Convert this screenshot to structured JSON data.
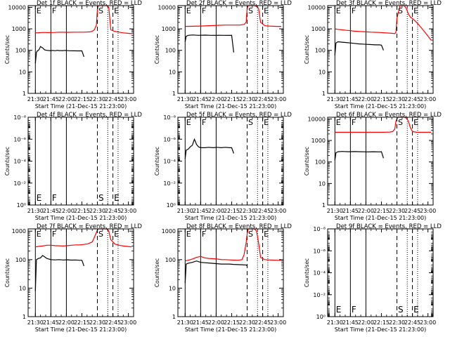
{
  "figure": {
    "xlabel": "Start Time (21-Dec-15 21:23:00)",
    "ylabel": "Counts/sec",
    "x_ticks": [
      "21:30",
      "21:45",
      "22:00",
      "22:15",
      "22:30",
      "22:45",
      "23:00"
    ],
    "x_tick_minutes": [
      7,
      22,
      37,
      52,
      67,
      82,
      97
    ],
    "x_range_minutes": [
      0,
      102
    ],
    "markers": {
      "E_left": 7,
      "F": 22,
      "solid_mid": 37,
      "S": 67,
      "E": 82,
      "dot1": 77,
      "dot2": 87
    },
    "colors": {
      "events": "#000000",
      "lld": "#ff0000"
    }
  },
  "chart_data": [
    {
      "type": "line",
      "title": "Det 1f BLACK = Events, RED = LLD",
      "ylim": [
        1,
        12000
      ],
      "y_ticks": [
        "1",
        "10",
        "100",
        "1000",
        "10000"
      ],
      "y_tick_values": [
        1,
        10,
        100,
        1000,
        10000
      ],
      "marker_labels": {
        "E": "E",
        "F": "F",
        "S": "S",
        "E2": "E"
      },
      "label_pos": "top",
      "series": [
        {
          "name": "Events",
          "color": "#000000",
          "x": [
            7,
            8,
            9,
            10,
            11,
            12,
            14,
            16,
            18,
            20,
            22,
            24,
            26,
            28,
            30,
            33,
            36,
            40,
            44,
            48,
            52,
            54
          ],
          "y": [
            25,
            80,
            95,
            100,
            120,
            150,
            130,
            105,
            100,
            98,
            97,
            99,
            96,
            100,
            98,
            97,
            99,
            96,
            95,
            94,
            95,
            50
          ]
        },
        {
          "name": "LLD",
          "color": "#ff0000",
          "x": [
            7,
            10,
            14,
            20,
            26,
            30,
            38,
            46,
            54,
            60,
            62,
            64,
            66,
            67,
            68,
            76,
            78,
            80,
            84,
            88,
            92,
            96,
            100
          ],
          "y": [
            650,
            660,
            680,
            670,
            680,
            700,
            690,
            700,
            700,
            720,
            780,
            900,
            1500,
            8000,
            12000,
            12000,
            10000,
            900,
            750,
            700,
            650,
            620,
            600
          ]
        }
      ]
    },
    {
      "type": "line",
      "title": "Det 2f BLACK = Events, RED = LLD",
      "ylim": [
        1,
        12000
      ],
      "y_ticks": [
        "1",
        "10",
        "100",
        "1000",
        "10000"
      ],
      "y_tick_values": [
        1,
        10,
        100,
        1000,
        10000
      ],
      "marker_labels": {
        "E": "E",
        "F": "F",
        "S": "S",
        "E2": "E"
      },
      "label_pos": "top",
      "series": [
        {
          "name": "Events",
          "color": "#000000",
          "x": [
            7,
            8,
            10,
            14,
            20,
            26,
            32,
            38,
            44,
            50,
            52,
            54
          ],
          "y": [
            250,
            450,
            500,
            520,
            500,
            510,
            500,
            505,
            500,
            495,
            500,
            80
          ]
        },
        {
          "name": "LLD",
          "color": "#ff0000",
          "x": [
            7,
            14,
            22,
            30,
            38,
            46,
            54,
            60,
            62,
            64,
            66,
            67,
            68,
            74,
            76,
            78,
            80,
            84,
            88,
            92,
            96,
            100
          ],
          "y": [
            1300,
            1320,
            1350,
            1400,
            1450,
            1500,
            1500,
            1500,
            1550,
            1600,
            2000,
            9000,
            12000,
            12000,
            11000,
            9000,
            2000,
            1400,
            1350,
            1320,
            1300,
            1300
          ]
        }
      ]
    },
    {
      "type": "line",
      "title": "Det 3f BLACK = Events, RED = LLD",
      "ylim": [
        1,
        12000
      ],
      "y_ticks": [
        "1",
        "10",
        "100",
        "1000",
        "10000"
      ],
      "y_tick_values": [
        1,
        10,
        100,
        1000,
        10000
      ],
      "marker_labels": {
        "E": "E",
        "F": "F",
        "S": "S",
        "E2": "E"
      },
      "label_pos": "top",
      "series": [
        {
          "name": "Events",
          "color": "#000000",
          "x": [
            7,
            8,
            10,
            14,
            18,
            22,
            26,
            30,
            34,
            38,
            42,
            46,
            50,
            52,
            54
          ],
          "y": [
            60,
            220,
            250,
            240,
            230,
            220,
            210,
            200,
            195,
            190,
            185,
            180,
            180,
            175,
            100
          ]
        },
        {
          "name": "LLD",
          "color": "#ff0000",
          "x": [
            7,
            10,
            14,
            18,
            22,
            26,
            30,
            34,
            38,
            42,
            46,
            50,
            54,
            58,
            62,
            65,
            66,
            67,
            70,
            74,
            76,
            78,
            80,
            82,
            86,
            90,
            94,
            98,
            100
          ],
          "y": [
            1000,
            950,
            900,
            850,
            820,
            780,
            760,
            740,
            720,
            700,
            690,
            680,
            660,
            640,
            620,
            600,
            700,
            3000,
            12000,
            12000,
            9000,
            5000,
            3500,
            3000,
            2000,
            1200,
            700,
            400,
            300
          ]
        }
      ]
    },
    {
      "type": "line",
      "title": "Det 4f BLACK = Events, RED = LLD",
      "ylim": [
        1,
        1e-08
      ],
      "y_ticks": [
        "10⁰",
        "10⁻²",
        "10⁻⁴",
        "10⁻⁶",
        "10⁻⁸"
      ],
      "y_tick_values": [
        1,
        0.01,
        0.0001,
        1e-06,
        1e-08
      ],
      "marker_labels": {
        "E": "E",
        "F": "F",
        "S": "S",
        "E2": "E"
      },
      "label_pos": "bottom",
      "series": []
    },
    {
      "type": "line",
      "title": "Det 5f BLACK = Events, RED = LLD",
      "ylim": [
        1,
        1e-08
      ],
      "y_ticks": [
        "10⁰",
        "10⁻²",
        "10⁻⁴",
        "10⁻⁶",
        "10⁻⁸"
      ],
      "y_tick_values": [
        1,
        0.01,
        0.0001,
        1e-06,
        1e-08
      ],
      "marker_labels": {
        "E": "E",
        "F": "F",
        "S": "S",
        "E2": "E"
      },
      "label_pos": "top",
      "series": [
        {
          "name": "Events",
          "color": "#000000",
          "x": [
            7,
            8,
            10,
            12,
            14,
            16,
            18,
            20,
            22,
            26,
            30,
            34,
            38,
            42,
            46,
            50,
            52,
            54
          ],
          "y": [
            6e-05,
            1e-05,
            8e-06,
            5e-06,
            3.5e-06,
            1e-06,
            3e-06,
            5e-06,
            6e-06,
            6e-06,
            5.5e-06,
            6e-06,
            5.5e-06,
            6e-06,
            5.5e-06,
            6e-06,
            6e-06,
            2e-05
          ]
        }
      ]
    },
    {
      "type": "line",
      "title": "Det 6f BLACK = Events, RED = LLD",
      "ylim": [
        1,
        12000
      ],
      "y_ticks": [
        "1",
        "10",
        "100",
        "1000",
        "10000"
      ],
      "y_tick_values": [
        1,
        10,
        100,
        1000,
        10000
      ],
      "marker_labels": {
        "E": "E",
        "F": "F",
        "S": "S",
        "E2": "E"
      },
      "label_pos": "top",
      "series": [
        {
          "name": "Events",
          "color": "#000000",
          "x": [
            7,
            8,
            10,
            14,
            20,
            26,
            32,
            38,
            44,
            50,
            52,
            54
          ],
          "y": [
            120,
            270,
            300,
            310,
            300,
            305,
            300,
            295,
            300,
            295,
            300,
            150
          ]
        },
        {
          "name": "LLD",
          "color": "#ff0000",
          "x": [
            7,
            14,
            22,
            30,
            38,
            46,
            54,
            60,
            63,
            65,
            66,
            67,
            68,
            74,
            76,
            78,
            80,
            82,
            86,
            90,
            96,
            100
          ],
          "y": [
            2400,
            2400,
            2400,
            2400,
            2400,
            2400,
            2400,
            2450,
            2600,
            3500,
            8000,
            10000,
            12000,
            12000,
            11000,
            8000,
            4000,
            2600,
            2400,
            2400,
            2400,
            2400
          ]
        }
      ]
    },
    {
      "type": "line",
      "title": "Det 7f BLACK = Events, RED = LLD",
      "ylim": [
        1,
        1200
      ],
      "y_ticks": [
        "1",
        "10",
        "100",
        "1000"
      ],
      "y_tick_values": [
        1,
        10,
        100,
        1000
      ],
      "marker_labels": {
        "E": "E",
        "F": "F",
        "S": "S",
        "E2": "E"
      },
      "label_pos": "top",
      "series": [
        {
          "name": "Events",
          "color": "#000000",
          "x": [
            7,
            8,
            10,
            12,
            14,
            16,
            18,
            20,
            22,
            26,
            30,
            34,
            38,
            42,
            46,
            50,
            52,
            54
          ],
          "y": [
            8,
            100,
            110,
            115,
            140,
            125,
            110,
            105,
            100,
            98,
            100,
            97,
            99,
            96,
            97,
            95,
            95,
            60
          ]
        },
        {
          "name": "LLD",
          "color": "#ff0000",
          "x": [
            7,
            10,
            14,
            18,
            22,
            26,
            30,
            34,
            38,
            42,
            46,
            50,
            54,
            58,
            62,
            64,
            66,
            67,
            68,
            76,
            78,
            80,
            84,
            88,
            92,
            96,
            100
          ],
          "y": [
            280,
            290,
            300,
            320,
            320,
            310,
            305,
            300,
            310,
            320,
            330,
            330,
            340,
            360,
            420,
            600,
            900,
            1100,
            1200,
            1200,
            1000,
            500,
            350,
            320,
            300,
            290,
            280
          ]
        }
      ]
    },
    {
      "type": "line",
      "title": "Det 8f BLACK = Events, RED = LLD",
      "ylim": [
        1,
        1200
      ],
      "y_ticks": [
        "1",
        "10",
        "100",
        "1000"
      ],
      "y_tick_values": [
        1,
        10,
        100,
        1000
      ],
      "marker_labels": {
        "E": "E",
        "F": "F",
        "S": "S",
        "E2": "E"
      },
      "label_pos": "top",
      "series": [
        {
          "name": "Events",
          "color": "#000000",
          "x": [
            7,
            8,
            10,
            14,
            18,
            22,
            26,
            30,
            34,
            38,
            42,
            46,
            50,
            54,
            58,
            62,
            66,
            67
          ],
          "y": [
            15,
            70,
            75,
            80,
            90,
            80,
            78,
            76,
            74,
            72,
            70,
            70,
            70,
            68,
            67,
            66,
            65,
            60
          ]
        },
        {
          "name": "LLD",
          "color": "#ff0000",
          "x": [
            7,
            10,
            14,
            18,
            22,
            26,
            30,
            34,
            38,
            42,
            46,
            50,
            54,
            58,
            62,
            64,
            66,
            67,
            68,
            74,
            76,
            78,
            80,
            84,
            88,
            92,
            96,
            100
          ],
          "y": [
            90,
            95,
            105,
            120,
            130,
            115,
            110,
            108,
            105,
            100,
            100,
            98,
            96,
            95,
            100,
            150,
            400,
            800,
            1200,
            1200,
            1000,
            400,
            120,
            100,
            98,
            96,
            95,
            95
          ]
        }
      ]
    },
    {
      "type": "line",
      "title": "Det 9f BLACK = Events, RED = LLD",
      "ylim": [
        1,
        1e-08
      ],
      "y_ticks": [
        "10⁰",
        "10⁻²",
        "10⁻⁴",
        "10⁻⁶",
        "10⁻⁸"
      ],
      "y_tick_values": [
        1,
        0.01,
        0.0001,
        1e-06,
        1e-08
      ],
      "marker_labels": {
        "E": "E",
        "F": "F",
        "S": "S",
        "E2": "E"
      },
      "label_pos": "bottom",
      "series": []
    }
  ]
}
